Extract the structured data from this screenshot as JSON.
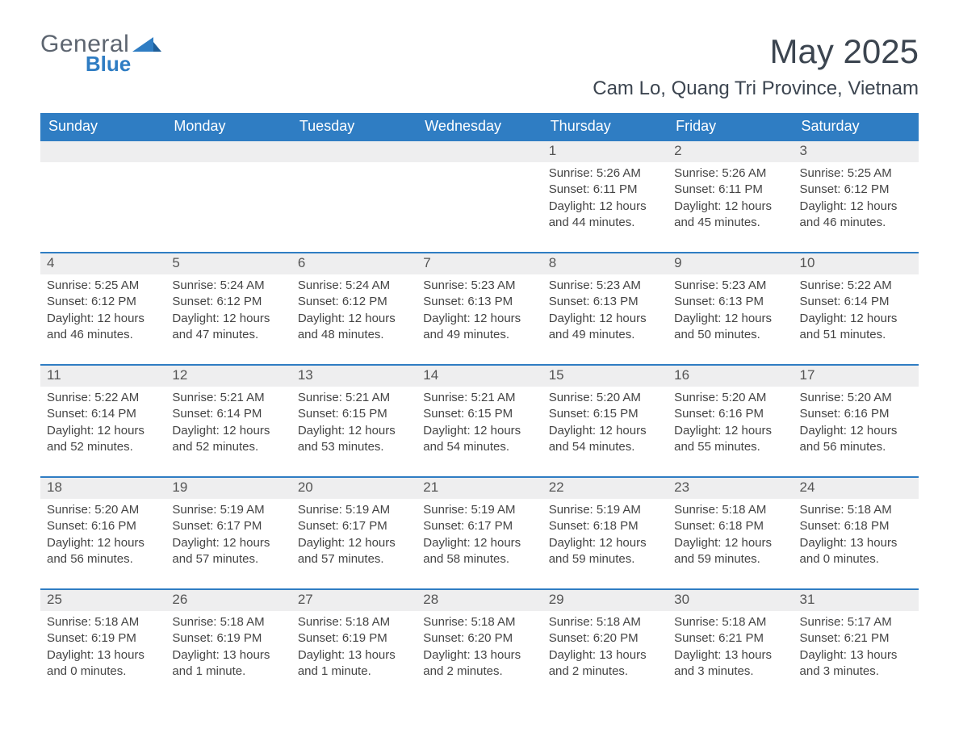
{
  "brand": {
    "general": "General",
    "blue": "Blue"
  },
  "title": {
    "main": "May 2025",
    "sub": "Cam Lo, Quang Tri Province, Vietnam"
  },
  "colors": {
    "header_bg": "#2f7dc3",
    "header_text": "#ffffff",
    "daynum_bg": "#eeeeef",
    "text": "#444444",
    "rule": "#2f7dc3"
  },
  "grid": {
    "cols": 7,
    "rows": 5,
    "first_day_column_index": 4
  },
  "day_headers": [
    "Sunday",
    "Monday",
    "Tuesday",
    "Wednesday",
    "Thursday",
    "Friday",
    "Saturday"
  ],
  "days": [
    {
      "n": 1,
      "sunrise": "5:26 AM",
      "sunset": "6:11 PM",
      "daylight": "12 hours and 44 minutes."
    },
    {
      "n": 2,
      "sunrise": "5:26 AM",
      "sunset": "6:11 PM",
      "daylight": "12 hours and 45 minutes."
    },
    {
      "n": 3,
      "sunrise": "5:25 AM",
      "sunset": "6:12 PM",
      "daylight": "12 hours and 46 minutes."
    },
    {
      "n": 4,
      "sunrise": "5:25 AM",
      "sunset": "6:12 PM",
      "daylight": "12 hours and 46 minutes."
    },
    {
      "n": 5,
      "sunrise": "5:24 AM",
      "sunset": "6:12 PM",
      "daylight": "12 hours and 47 minutes."
    },
    {
      "n": 6,
      "sunrise": "5:24 AM",
      "sunset": "6:12 PM",
      "daylight": "12 hours and 48 minutes."
    },
    {
      "n": 7,
      "sunrise": "5:23 AM",
      "sunset": "6:13 PM",
      "daylight": "12 hours and 49 minutes."
    },
    {
      "n": 8,
      "sunrise": "5:23 AM",
      "sunset": "6:13 PM",
      "daylight": "12 hours and 49 minutes."
    },
    {
      "n": 9,
      "sunrise": "5:23 AM",
      "sunset": "6:13 PM",
      "daylight": "12 hours and 50 minutes."
    },
    {
      "n": 10,
      "sunrise": "5:22 AM",
      "sunset": "6:14 PM",
      "daylight": "12 hours and 51 minutes."
    },
    {
      "n": 11,
      "sunrise": "5:22 AM",
      "sunset": "6:14 PM",
      "daylight": "12 hours and 52 minutes."
    },
    {
      "n": 12,
      "sunrise": "5:21 AM",
      "sunset": "6:14 PM",
      "daylight": "12 hours and 52 minutes."
    },
    {
      "n": 13,
      "sunrise": "5:21 AM",
      "sunset": "6:15 PM",
      "daylight": "12 hours and 53 minutes."
    },
    {
      "n": 14,
      "sunrise": "5:21 AM",
      "sunset": "6:15 PM",
      "daylight": "12 hours and 54 minutes."
    },
    {
      "n": 15,
      "sunrise": "5:20 AM",
      "sunset": "6:15 PM",
      "daylight": "12 hours and 54 minutes."
    },
    {
      "n": 16,
      "sunrise": "5:20 AM",
      "sunset": "6:16 PM",
      "daylight": "12 hours and 55 minutes."
    },
    {
      "n": 17,
      "sunrise": "5:20 AM",
      "sunset": "6:16 PM",
      "daylight": "12 hours and 56 minutes."
    },
    {
      "n": 18,
      "sunrise": "5:20 AM",
      "sunset": "6:16 PM",
      "daylight": "12 hours and 56 minutes."
    },
    {
      "n": 19,
      "sunrise": "5:19 AM",
      "sunset": "6:17 PM",
      "daylight": "12 hours and 57 minutes."
    },
    {
      "n": 20,
      "sunrise": "5:19 AM",
      "sunset": "6:17 PM",
      "daylight": "12 hours and 57 minutes."
    },
    {
      "n": 21,
      "sunrise": "5:19 AM",
      "sunset": "6:17 PM",
      "daylight": "12 hours and 58 minutes."
    },
    {
      "n": 22,
      "sunrise": "5:19 AM",
      "sunset": "6:18 PM",
      "daylight": "12 hours and 59 minutes."
    },
    {
      "n": 23,
      "sunrise": "5:18 AM",
      "sunset": "6:18 PM",
      "daylight": "12 hours and 59 minutes."
    },
    {
      "n": 24,
      "sunrise": "5:18 AM",
      "sunset": "6:18 PM",
      "daylight": "13 hours and 0 minutes."
    },
    {
      "n": 25,
      "sunrise": "5:18 AM",
      "sunset": "6:19 PM",
      "daylight": "13 hours and 0 minutes."
    },
    {
      "n": 26,
      "sunrise": "5:18 AM",
      "sunset": "6:19 PM",
      "daylight": "13 hours and 1 minute."
    },
    {
      "n": 27,
      "sunrise": "5:18 AM",
      "sunset": "6:19 PM",
      "daylight": "13 hours and 1 minute."
    },
    {
      "n": 28,
      "sunrise": "5:18 AM",
      "sunset": "6:20 PM",
      "daylight": "13 hours and 2 minutes."
    },
    {
      "n": 29,
      "sunrise": "5:18 AM",
      "sunset": "6:20 PM",
      "daylight": "13 hours and 2 minutes."
    },
    {
      "n": 30,
      "sunrise": "5:18 AM",
      "sunset": "6:21 PM",
      "daylight": "13 hours and 3 minutes."
    },
    {
      "n": 31,
      "sunrise": "5:17 AM",
      "sunset": "6:21 PM",
      "daylight": "13 hours and 3 minutes."
    }
  ],
  "labels": {
    "sunrise": "Sunrise: ",
    "sunset": "Sunset: ",
    "daylight": "Daylight: "
  }
}
